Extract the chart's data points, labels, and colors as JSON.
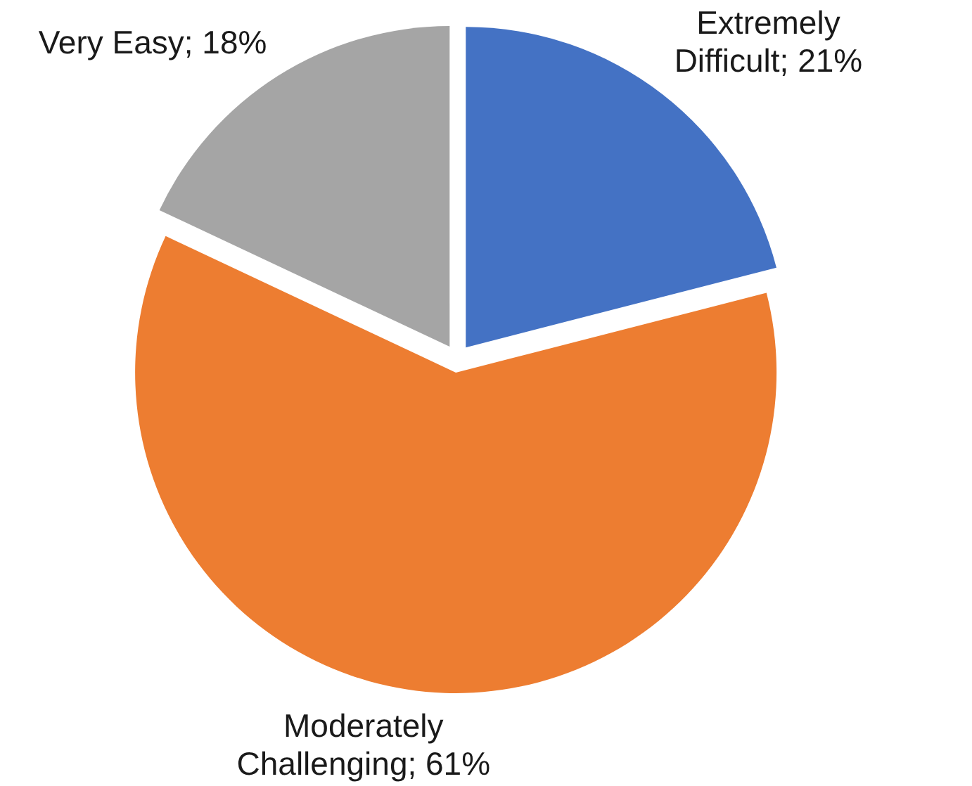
{
  "chart_data": {
    "type": "pie",
    "categories": [
      "Extremely Difficult",
      "Moderately Challenging",
      "Very Easy"
    ],
    "values": [
      21,
      61,
      18
    ],
    "colors": [
      "#4472c4",
      "#ed7d31",
      "#a5a5a5"
    ],
    "value_labels": [
      "21%",
      "61%",
      "18%"
    ],
    "legend": false
  }
}
